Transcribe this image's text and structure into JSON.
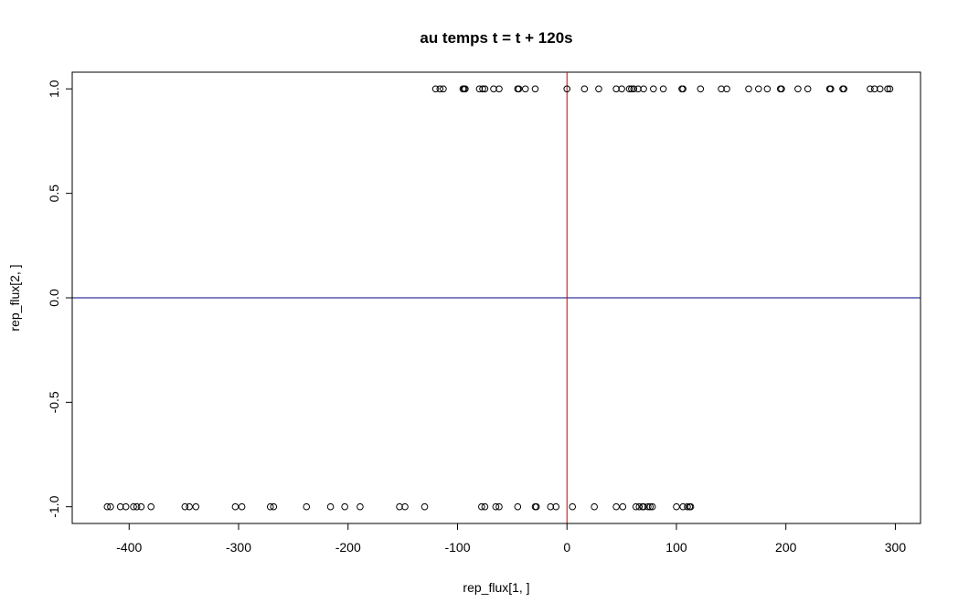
{
  "chart_data": {
    "type": "scatter",
    "title": "au temps t = t + 120s",
    "xlabel": "rep_flux[1, ]",
    "ylabel": "rep_flux[2, ]",
    "xlim": [
      -452,
      323
    ],
    "ylim": [
      -1.08,
      1.08
    ],
    "xticks": [
      -400,
      -300,
      -200,
      -100,
      0,
      100,
      200,
      300
    ],
    "xtick_labels": [
      "-400",
      "-300",
      "-200",
      "-100",
      "0",
      "100",
      "200",
      "300"
    ],
    "yticks": [
      -1.0,
      -0.5,
      0.0,
      0.5,
      1.0
    ],
    "ytick_labels": [
      "-1.0",
      "-0.5",
      "0.0",
      "0.5",
      "1.0"
    ],
    "hline": {
      "y": 0,
      "color": "#000080"
    },
    "vline": {
      "x": 0,
      "color": "#cc0000"
    },
    "grid": false,
    "legend": "none",
    "points_top": {
      "y": 1,
      "x": [
        -120,
        -116,
        -113,
        -95,
        -94,
        -93,
        -80,
        -77,
        -75,
        -67,
        -62,
        -45,
        -44,
        -38,
        -29,
        0,
        16,
        29,
        45,
        50,
        57,
        59,
        61,
        65,
        70,
        79,
        88,
        105,
        106,
        122,
        141,
        146,
        166,
        175,
        183,
        195,
        196,
        211,
        220,
        240,
        241,
        252,
        253,
        277,
        281,
        286,
        293,
        295
      ]
    },
    "points_bottom": {
      "y": -1,
      "x": [
        -420,
        -417,
        -408,
        -403,
        -396,
        -393,
        -389,
        -380,
        -349,
        -345,
        -339,
        -303,
        -297,
        -271,
        -268,
        -238,
        -216,
        -203,
        -189,
        -153,
        -148,
        -130,
        -78,
        -75,
        -65,
        -62,
        -45,
        -29,
        -28,
        -15,
        -10,
        5,
        25,
        45,
        51,
        63,
        66,
        69,
        70,
        74,
        76,
        78,
        100,
        106,
        110,
        112,
        113
      ]
    }
  }
}
